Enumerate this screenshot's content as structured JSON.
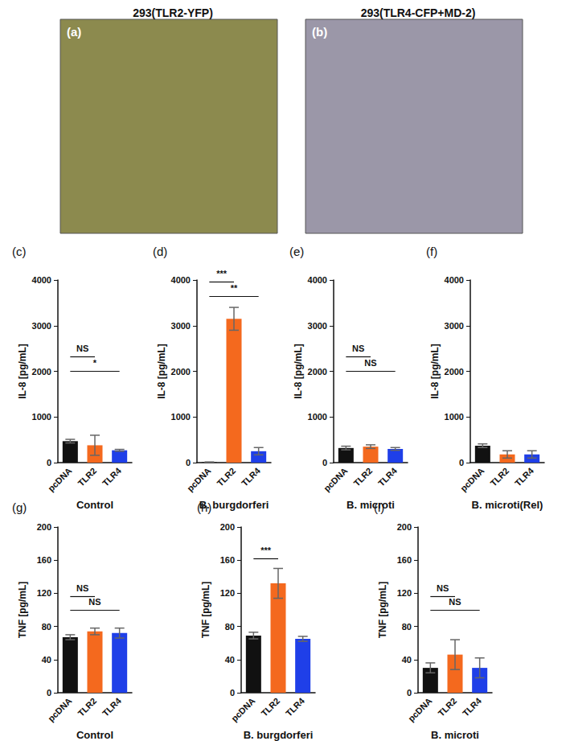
{
  "panels": [
    {
      "label": "(a)",
      "title": "293(TLR2-YFP)",
      "color": "#8c8a4e"
    },
    {
      "label": "(b)",
      "title": "293(TLR4-CFP+MD-2)",
      "color": "#9b97a8"
    }
  ],
  "chart_data": [
    {
      "type": "bar",
      "label": "(c)",
      "xlabel": "Control",
      "ylabel": "IL-8 [pg/mL]",
      "categories": [
        "pcDNA",
        "TLR2",
        "TLR4"
      ],
      "values": [
        470,
        380,
        270
      ],
      "errors": [
        40,
        220,
        20
      ],
      "colors": [
        "#111111",
        "#f4691e",
        "#1f3fe8"
      ],
      "ylim": [
        0,
        4000
      ],
      "yticks": [
        0,
        1000,
        2000,
        3000,
        4000
      ],
      "grid": false,
      "annotations": [
        {
          "from": "pcDNA",
          "to": "TLR2",
          "text": "NS"
        },
        {
          "from": "pcDNA",
          "to": "TLR4",
          "text": "*"
        }
      ]
    },
    {
      "type": "bar",
      "label": "(d)",
      "xlabel": "B. burgdorferi",
      "ylabel": "IL-8 [pg/mL]",
      "categories": [
        "pcDNA",
        "TLR2",
        "TLR4"
      ],
      "values": [
        10,
        3150,
        250
      ],
      "errors": [
        5,
        250,
        80
      ],
      "colors": [
        "#111111",
        "#f4691e",
        "#1f3fe8"
      ],
      "ylim": [
        0,
        4000
      ],
      "yticks": [
        0,
        1000,
        2000,
        3000,
        4000
      ],
      "grid": false,
      "annotations": [
        {
          "from": "pcDNA",
          "to": "TLR2",
          "text": "***"
        },
        {
          "from": "pcDNA",
          "to": "TLR4",
          "text": "**"
        }
      ]
    },
    {
      "type": "bar",
      "label": "(e)",
      "xlabel": "B. microti",
      "ylabel": "IL-8 [pg/mL]",
      "categories": [
        "pcDNA",
        "TLR2",
        "TLR4"
      ],
      "values": [
        320,
        350,
        300
      ],
      "errors": [
        40,
        40,
        30
      ],
      "colors": [
        "#111111",
        "#f4691e",
        "#1f3fe8"
      ],
      "ylim": [
        0,
        4000
      ],
      "yticks": [
        0,
        1000,
        2000,
        3000,
        4000
      ],
      "grid": false,
      "annotations": [
        {
          "from": "pcDNA",
          "to": "TLR2",
          "text": "NS"
        },
        {
          "from": "pcDNA",
          "to": "TLR4",
          "text": "NS"
        }
      ]
    },
    {
      "type": "bar",
      "label": "(f)",
      "xlabel": "B. microti(Rel)",
      "ylabel": "IL-8 [pg/mL]",
      "categories": [
        "pcDNA",
        "TLR2",
        "TLR4"
      ],
      "values": [
        370,
        180,
        180
      ],
      "errors": [
        40,
        80,
        80
      ],
      "colors": [
        "#111111",
        "#f4691e",
        "#1f3fe8"
      ],
      "ylim": [
        0,
        4000
      ],
      "yticks": [
        0,
        1000,
        2000,
        3000,
        4000
      ],
      "grid": false
    },
    {
      "type": "bar",
      "label": "(g)",
      "xlabel": "Control",
      "ylabel": "TNF [pg/mL]",
      "categories": [
        "pcDNA",
        "TLR2",
        "TLR4"
      ],
      "values": [
        67,
        74,
        72
      ],
      "errors": [
        3,
        4,
        6
      ],
      "colors": [
        "#111111",
        "#f4691e",
        "#1f3fe8"
      ],
      "ylim": [
        0,
        200
      ],
      "yticks": [
        0,
        40,
        80,
        120,
        160,
        200
      ],
      "grid": false,
      "annotations": [
        {
          "from": "pcDNA",
          "to": "TLR2",
          "text": "NS"
        },
        {
          "from": "pcDNA",
          "to": "TLR4",
          "text": "NS"
        }
      ]
    },
    {
      "type": "bar",
      "label": "(h)",
      "xlabel": "B. burgdorferi",
      "ylabel": "TNF [pg/mL]",
      "categories": [
        "pcDNA",
        "TLR2",
        "TLR4"
      ],
      "values": [
        69,
        132,
        65
      ],
      "errors": [
        4,
        18,
        3
      ],
      "colors": [
        "#111111",
        "#f4691e",
        "#1f3fe8"
      ],
      "ylim": [
        0,
        200
      ],
      "yticks": [
        0,
        40,
        80,
        120,
        160,
        200
      ],
      "grid": false,
      "annotations": [
        {
          "from": "pcDNA",
          "to": "TLR2",
          "text": "***"
        }
      ]
    },
    {
      "type": "bar",
      "label": "(i)",
      "xlabel": "B. microti",
      "ylabel": "TNF [pg/mL]",
      "categories": [
        "pcDNA",
        "TLR2",
        "TLR4"
      ],
      "values": [
        30,
        46,
        30
      ],
      "errors": [
        6,
        18,
        12
      ],
      "colors": [
        "#111111",
        "#f4691e",
        "#1f3fe8"
      ],
      "ylim": [
        0,
        200
      ],
      "yticks": [
        0,
        40,
        80,
        120,
        160,
        200
      ],
      "grid": false,
      "annotations": [
        {
          "from": "pcDNA",
          "to": "TLR2",
          "text": "NS"
        },
        {
          "from": "pcDNA",
          "to": "TLR4",
          "text": "NS"
        }
      ]
    }
  ]
}
